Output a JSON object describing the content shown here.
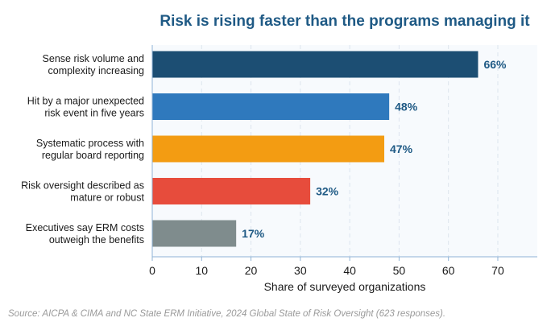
{
  "chart_data": {
    "type": "bar",
    "orientation": "horizontal",
    "title": "Risk is rising faster than the programs managing it",
    "xlabel": "Share of surveyed organizations",
    "ylabel": "",
    "xlim": [
      0,
      78
    ],
    "xticks": [
      0,
      10,
      20,
      30,
      40,
      50,
      60,
      70
    ],
    "grid": true,
    "categories": [
      [
        "Sense risk volume and",
        "complexity increasing"
      ],
      [
        "Hit by a major unexpected",
        "risk event in five years"
      ],
      [
        "Systematic process with",
        "regular board reporting"
      ],
      [
        "Risk oversight described as",
        "mature or robust"
      ],
      [
        "Executives say ERM costs",
        "outweigh the benefits"
      ]
    ],
    "values": [
      66,
      48,
      47,
      32,
      17
    ],
    "value_labels": [
      "66%",
      "48%",
      "47%",
      "32%",
      "17%"
    ],
    "colors": [
      "#1c4e73",
      "#2f79bd",
      "#f39c12",
      "#e74c3c",
      "#7f8c8d"
    ],
    "source": "Source: AICPA & CIMA and NC State ERM Initiative, 2024 Global State of Risk Oversight (623 responses)."
  }
}
